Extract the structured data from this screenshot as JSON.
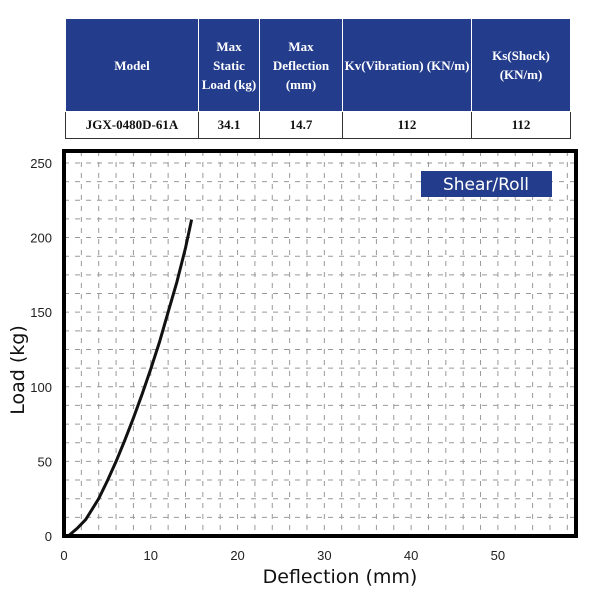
{
  "table": {
    "headers": [
      "Model",
      "Max Static Load (kg)",
      "Max Deflection (mm)",
      "Kv(Vibration) (KN/m)",
      "Ks(Shock) (KN/m)"
    ],
    "rows": [
      [
        "JGX-0480D-61A",
        "34.1",
        "14.7",
        "112",
        "112"
      ]
    ]
  },
  "colors": {
    "header_bg": "#233c8c",
    "legend_bg": "#233c8c",
    "curve": "#111111"
  },
  "chart_data": {
    "type": "line",
    "title": "",
    "legend": "Shear/Roll",
    "legend_placement": "top-right",
    "xlabel": "Deflection (mm)",
    "ylabel": "Load (kg)",
    "xlim": [
      0,
      59
    ],
    "ylim": [
      0,
      258
    ],
    "xticks": [
      0,
      10,
      20,
      30,
      40,
      50
    ],
    "yticks": [
      0,
      50,
      100,
      150,
      200,
      250
    ],
    "grid": true,
    "series": [
      {
        "name": "Shear/Roll",
        "x": [
          0.5,
          1.5,
          2.5,
          4,
          5,
          6,
          7,
          8,
          9,
          10,
          11,
          12,
          13,
          14,
          14.7
        ],
        "y": [
          0,
          5,
          11,
          25,
          37,
          50,
          64,
          79,
          95,
          112,
          130,
          150,
          170,
          193,
          212
        ]
      }
    ]
  }
}
